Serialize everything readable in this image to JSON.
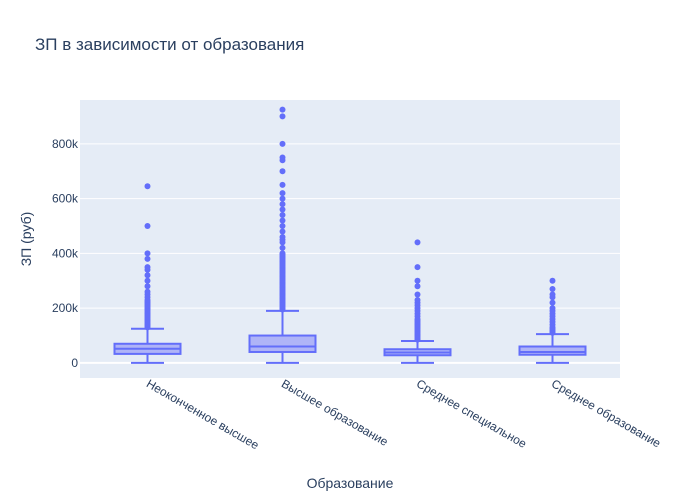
{
  "chart_data": {
    "type": "box",
    "title": "ЗП в зависимости от образования",
    "xlabel": "Образование",
    "ylabel": "ЗП (руб)",
    "ylim": [
      -55000,
      960000
    ],
    "yticks": [
      0,
      200000,
      400000,
      600000,
      800000
    ],
    "ytick_labels": [
      "0",
      "200k",
      "400k",
      "600k",
      "800k"
    ],
    "grid": true,
    "colors": {
      "plot_bg": "#e5ecf6",
      "box_line": "#636efa",
      "box_fill": "#a6aaf7",
      "text": "#2a3f5f",
      "grid": "#ffffff"
    },
    "categories": [
      "Неоконченное высшее",
      "Высшее образование",
      "Среднее специальное",
      "Среднее образование"
    ],
    "boxes": [
      {
        "category": "Неоконченное высшее",
        "min": 0,
        "q1": 33000,
        "median": 52000,
        "q3": 70000,
        "max": 125000,
        "outliers": [
          130000,
          135000,
          140000,
          145000,
          150000,
          155000,
          160000,
          165000,
          170000,
          175000,
          180000,
          185000,
          190000,
          195000,
          200000,
          205000,
          210000,
          215000,
          220000,
          225000,
          230000,
          240000,
          250000,
          260000,
          280000,
          300000,
          320000,
          340000,
          350000,
          380000,
          400000,
          500000,
          645000
        ]
      },
      {
        "category": "Высшее образование",
        "min": 0,
        "q1": 40000,
        "median": 60000,
        "q3": 100000,
        "max": 190000,
        "outliers": [
          195000,
          200000,
          205000,
          210000,
          215000,
          220000,
          225000,
          230000,
          235000,
          240000,
          245000,
          250000,
          255000,
          260000,
          265000,
          270000,
          275000,
          280000,
          285000,
          290000,
          295000,
          300000,
          305000,
          310000,
          315000,
          320000,
          325000,
          330000,
          335000,
          340000,
          345000,
          350000,
          355000,
          360000,
          365000,
          370000,
          375000,
          380000,
          385000,
          390000,
          395000,
          400000,
          420000,
          440000,
          450000,
          460000,
          480000,
          500000,
          520000,
          540000,
          560000,
          580000,
          600000,
          620000,
          650000,
          700000,
          740000,
          750000,
          800000,
          900000,
          925000
        ]
      },
      {
        "category": "Среднее специальное",
        "min": 0,
        "q1": 28000,
        "median": 38000,
        "q3": 50000,
        "max": 80000,
        "outliers": [
          85000,
          90000,
          95000,
          100000,
          105000,
          110000,
          115000,
          120000,
          125000,
          130000,
          135000,
          140000,
          145000,
          150000,
          155000,
          160000,
          170000,
          180000,
          190000,
          200000,
          210000,
          220000,
          230000,
          250000,
          280000,
          300000,
          350000,
          440000
        ]
      },
      {
        "category": "Среднее образование",
        "min": 0,
        "q1": 30000,
        "median": 40000,
        "q3": 60000,
        "max": 105000,
        "outliers": [
          110000,
          115000,
          120000,
          125000,
          130000,
          140000,
          150000,
          160000,
          170000,
          180000,
          190000,
          200000,
          220000,
          240000,
          250000,
          270000,
          300000
        ]
      }
    ]
  }
}
